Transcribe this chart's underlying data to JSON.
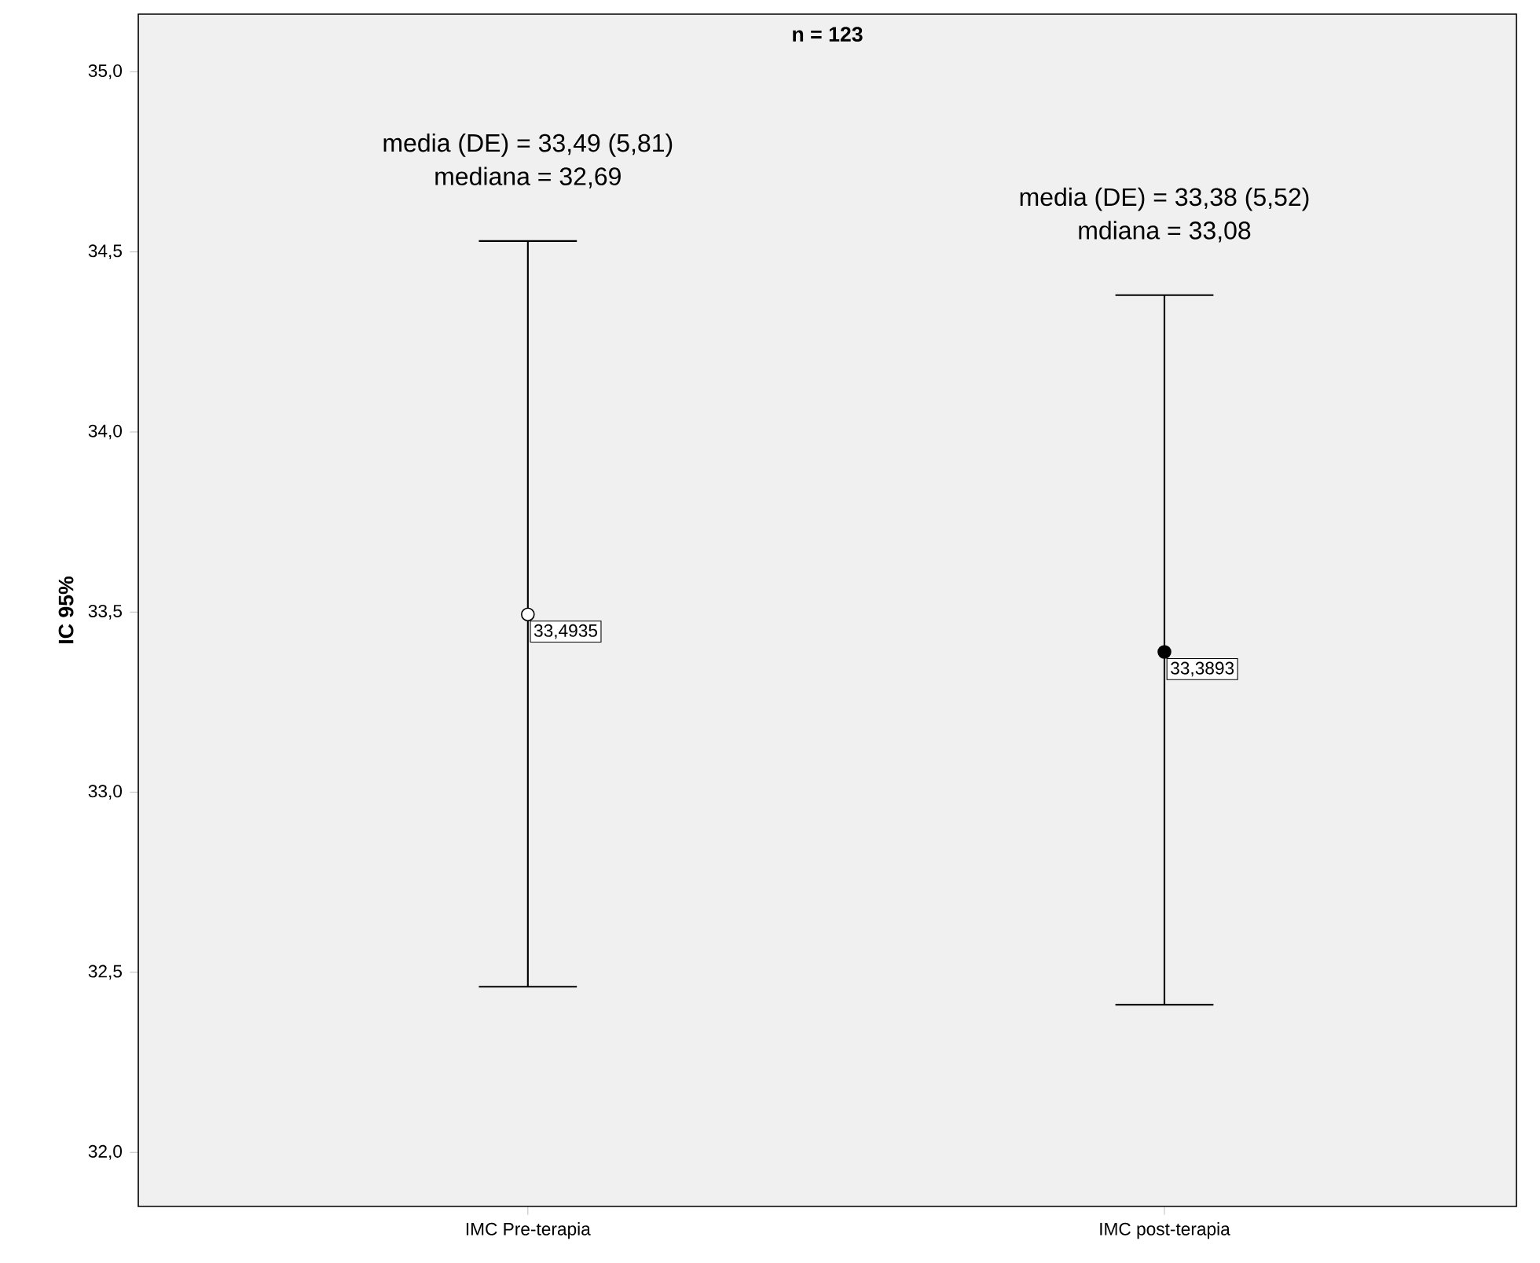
{
  "chart_data": {
    "type": "scatter",
    "title": "n = 123",
    "ylabel": "IC 95%",
    "categories": [
      "IMC Pre-terapia",
      "IMC post-terapia"
    ],
    "values": [
      33.4935,
      33.3893
    ],
    "colors": [
      "#ffffff",
      "#000000"
    ],
    "errors": [
      [
        32.46,
        34.53
      ],
      [
        32.41,
        34.38
      ]
    ],
    "value_labels": [
      "33,4935",
      "33,3893"
    ],
    "marker": "circle",
    "ylim": [
      31.85,
      35.16
    ],
    "yticks": [
      {
        "value": 32.0,
        "label": "32,0"
      },
      {
        "value": 32.5,
        "label": "32,5"
      },
      {
        "value": 33.0,
        "label": "33,0"
      },
      {
        "value": 33.5,
        "label": "33,5"
      },
      {
        "value": 34.0,
        "label": "34,0"
      },
      {
        "value": 34.5,
        "label": "34,5"
      },
      {
        "value": 35.0,
        "label": "35,0"
      }
    ],
    "annotations": [
      "media (DE) = 33,49 (5,81)",
      "mediana = 32,69",
      "media (DE) = 33,38 (5,52)",
      "mdiana = 33,08"
    ]
  }
}
